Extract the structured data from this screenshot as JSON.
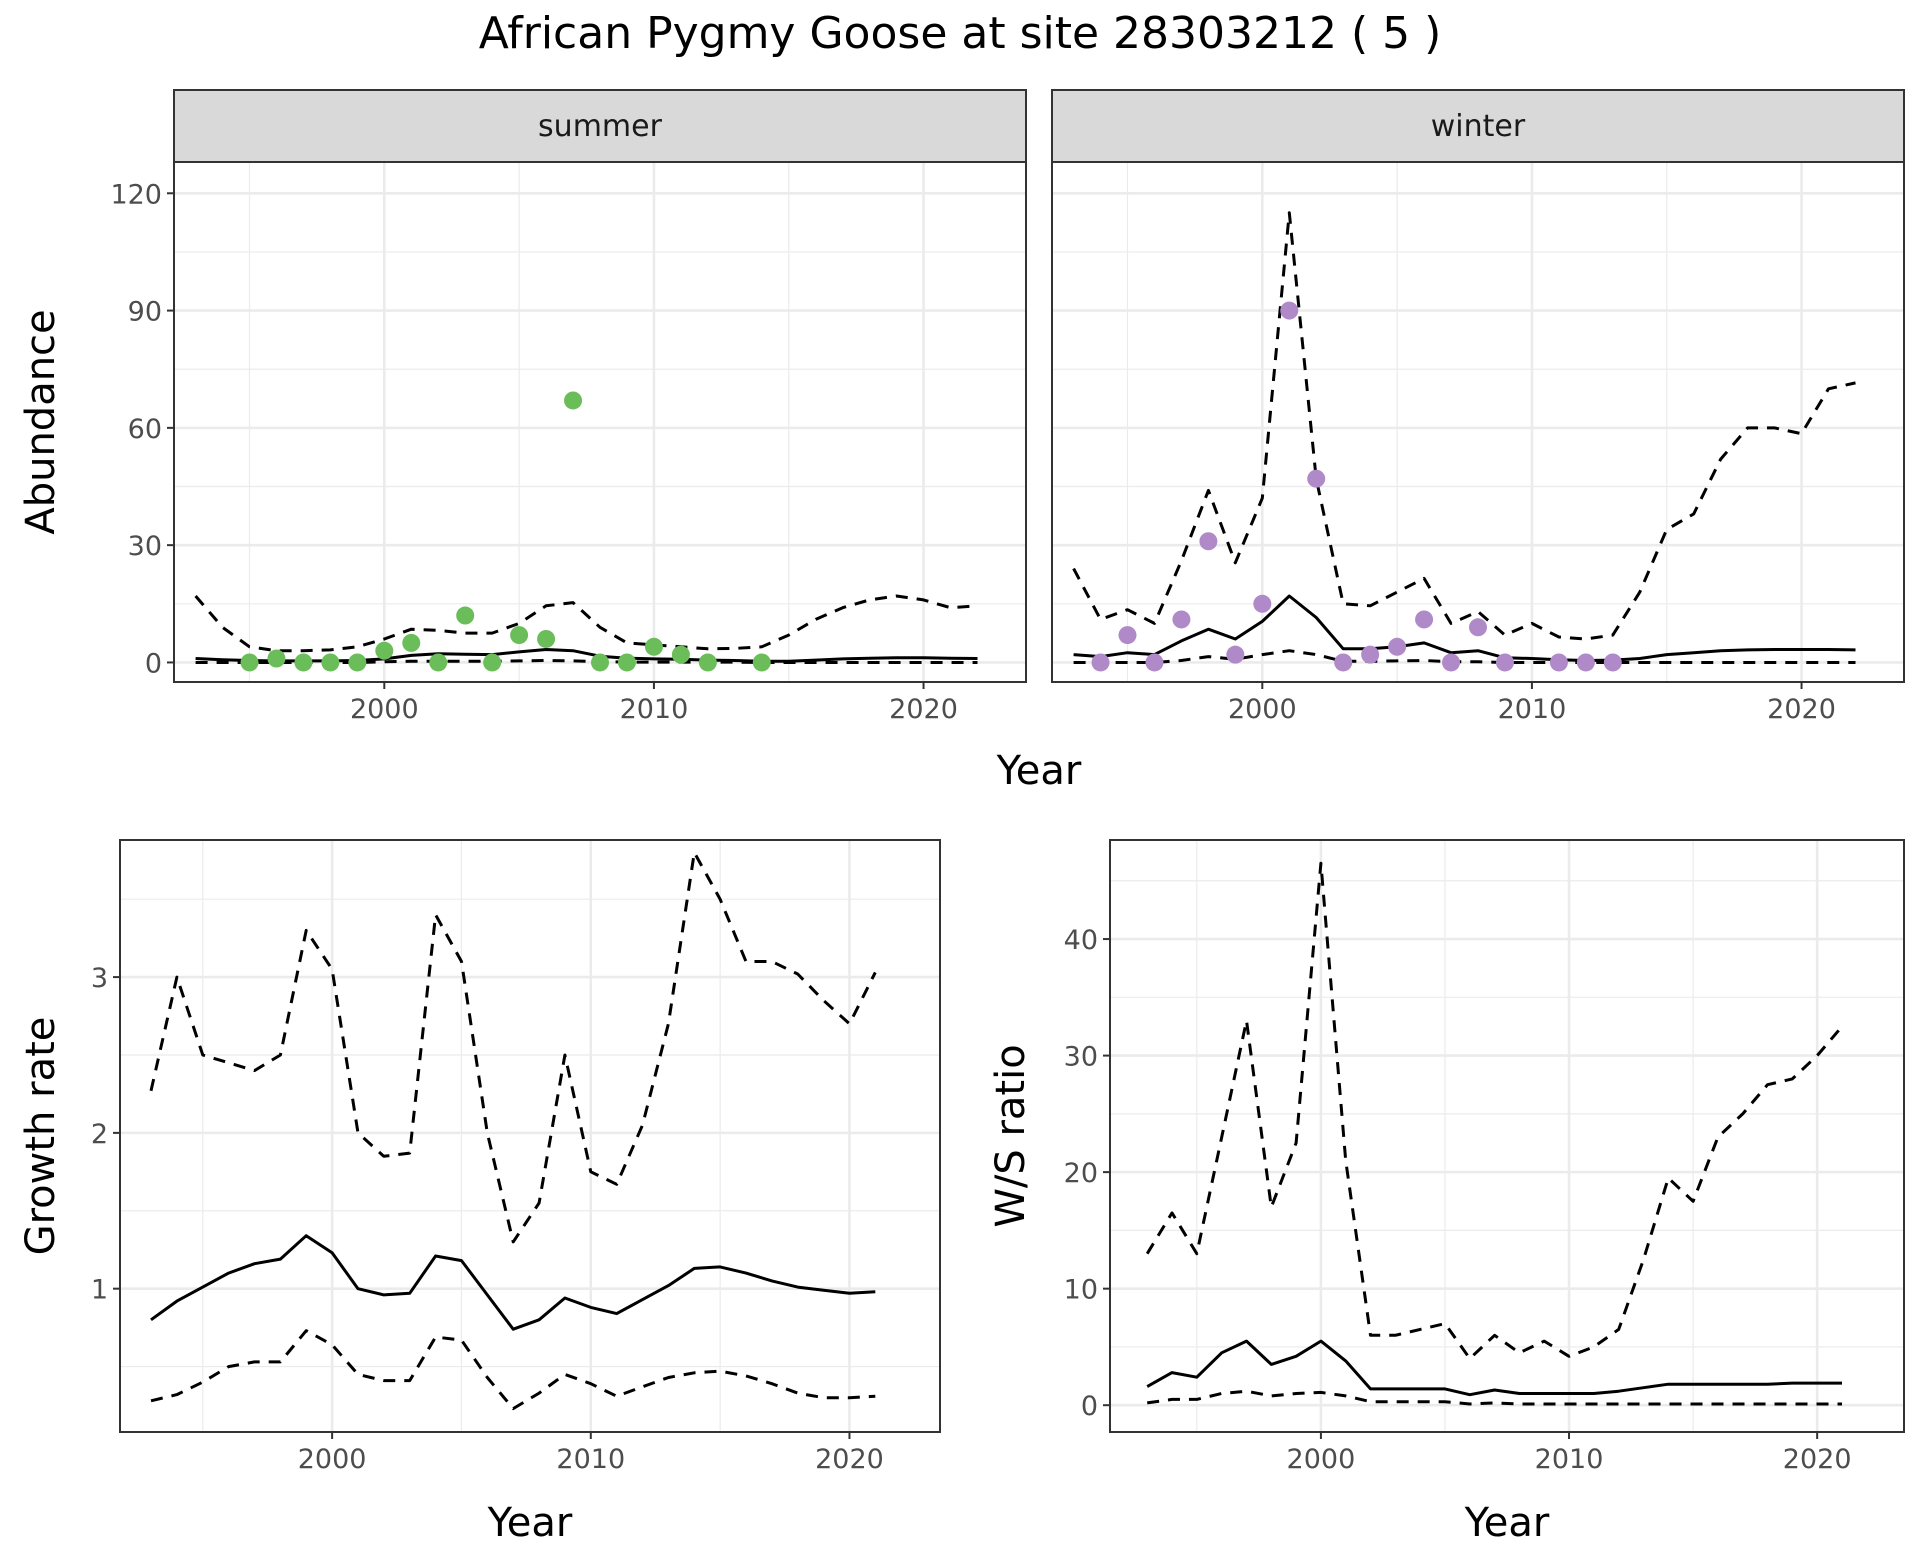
{
  "title": "African Pygmy Goose at site 28303212 ( 5 )",
  "colors": {
    "summer_points": "#6bbd5a",
    "winter_points": "#b08ac8",
    "line": "#000000",
    "grid": "#ebebeb",
    "strip": "#d9d9d9"
  },
  "chart_data": [
    {
      "type": "line",
      "panel": "summer",
      "strip_label": "summer",
      "xlabel": "Year",
      "ylabel": "Abundance",
      "xlim": [
        1992.2,
        2023.8
      ],
      "ylim": [
        -5,
        128
      ],
      "xticks": [
        2000,
        2010,
        2020
      ],
      "yticks": [
        0,
        30,
        60,
        90,
        120
      ],
      "grid": true,
      "x": [
        1993,
        1994,
        1995,
        1996,
        1997,
        1998,
        1999,
        2000,
        2001,
        2002,
        2003,
        2004,
        2005,
        2006,
        2007,
        2008,
        2009,
        2010,
        2011,
        2012,
        2013,
        2014,
        2015,
        2016,
        2017,
        2018,
        2019,
        2020,
        2021,
        2022
      ],
      "series": [
        {
          "style": "solid",
          "values": [
            1,
            0.7,
            0.5,
            0.4,
            0.4,
            0.4,
            0.5,
            0.9,
            1.8,
            2.2,
            2.1,
            2.0,
            2.7,
            3.3,
            3.0,
            1.6,
            1.1,
            0.9,
            0.8,
            0.6,
            0.5,
            0.3,
            0.3,
            0.6,
            0.9,
            1.1,
            1.2,
            1.2,
            1.1,
            1.0
          ]
        },
        {
          "style": "dashed",
          "values": [
            17,
            9,
            4,
            3,
            3,
            3.2,
            4,
            6,
            8.5,
            8.2,
            7.5,
            7.5,
            10,
            14.5,
            15.3,
            9,
            5,
            4.5,
            4,
            3.5,
            3.6,
            4,
            7,
            11,
            14,
            16,
            17,
            16,
            14,
            14.5
          ]
        },
        {
          "style": "dashed",
          "values": [
            0,
            0,
            0,
            0,
            0,
            0,
            0,
            0.2,
            0.3,
            0.3,
            0.3,
            0.3,
            0.4,
            0.5,
            0.4,
            0.2,
            0.1,
            0.1,
            0.1,
            0.1,
            0.1,
            0,
            0,
            0,
            0,
            0,
            0,
            0,
            0,
            0
          ]
        }
      ],
      "points": {
        "x": [
          1995,
          1996,
          1997,
          1998,
          1999,
          2000,
          2001,
          2002,
          2003,
          2004,
          2005,
          2006,
          2007,
          2008,
          2009,
          2010,
          2011,
          2012,
          2014
        ],
        "y": [
          0,
          1,
          0,
          0,
          0,
          3,
          5,
          0,
          12,
          0,
          7,
          6,
          67,
          0,
          0,
          4,
          2,
          0,
          0
        ]
      }
    },
    {
      "type": "line",
      "panel": "winter",
      "strip_label": "winter",
      "xlabel": "Year",
      "ylabel": "Abundance",
      "xlim": [
        1992.2,
        2023.8
      ],
      "ylim": [
        -5,
        128
      ],
      "xticks": [
        2000,
        2010,
        2020
      ],
      "yticks": [
        0,
        30,
        60,
        90,
        120
      ],
      "grid": true,
      "x": [
        1993,
        1994,
        1995,
        1996,
        1997,
        1998,
        1999,
        2000,
        2001,
        2002,
        2003,
        2004,
        2005,
        2006,
        2007,
        2008,
        2009,
        2010,
        2011,
        2012,
        2013,
        2014,
        2015,
        2016,
        2017,
        2018,
        2019,
        2020,
        2021,
        2022
      ],
      "series": [
        {
          "style": "solid",
          "values": [
            2,
            1.5,
            2.5,
            2,
            5.5,
            8.5,
            6,
            10.5,
            17,
            11.5,
            3.5,
            3.5,
            4,
            5,
            2.5,
            3,
            1.2,
            1,
            0.7,
            0.5,
            0.6,
            1,
            2,
            2.5,
            3,
            3.2,
            3.3,
            3.3,
            3.3,
            3.2
          ]
        },
        {
          "style": "dashed",
          "values": [
            24,
            11,
            13.5,
            10,
            26,
            44,
            25.5,
            42,
            115,
            47,
            15,
            14.5,
            18,
            21.5,
            10,
            13,
            7,
            10,
            6.5,
            6,
            7,
            18,
            34,
            38,
            52,
            60,
            60,
            58.5,
            70,
            71.5
          ]
        },
        {
          "style": "dashed",
          "values": [
            0,
            0,
            0,
            0,
            0.5,
            1.5,
            0.8,
            2,
            3,
            2,
            0.3,
            0.3,
            0.4,
            0.5,
            0.2,
            0.2,
            0,
            0,
            0,
            0,
            0,
            0,
            0,
            0,
            0,
            0,
            0,
            0,
            0,
            0
          ]
        }
      ],
      "points": {
        "x": [
          1994,
          1995,
          1996,
          1997,
          1998,
          1999,
          2000,
          2001,
          2002,
          2003,
          2004,
          2005,
          2006,
          2007,
          2008,
          2009,
          2011,
          2012,
          2013
        ],
        "y": [
          0,
          7,
          0,
          11,
          31,
          2,
          15,
          90,
          47,
          0,
          2,
          4,
          11,
          0,
          9,
          0,
          0,
          0,
          0
        ]
      }
    },
    {
      "type": "line",
      "panel": "growth",
      "xlabel": "Year",
      "ylabel": "Growth rate",
      "xlim": [
        1991.8,
        2023.5
      ],
      "ylim": [
        0.08,
        3.88
      ],
      "xticks": [
        2000,
        2010,
        2020
      ],
      "yticks": [
        1,
        2,
        3
      ],
      "grid": true,
      "x": [
        1993,
        1994,
        1995,
        1996,
        1997,
        1998,
        1999,
        2000,
        2001,
        2002,
        2003,
        2004,
        2005,
        2006,
        2007,
        2008,
        2009,
        2010,
        2011,
        2012,
        2013,
        2014,
        2015,
        2016,
        2017,
        2018,
        2019,
        2020,
        2021
      ],
      "series": [
        {
          "style": "solid",
          "values": [
            0.8,
            0.92,
            1.01,
            1.1,
            1.16,
            1.19,
            1.34,
            1.23,
            1.0,
            0.96,
            0.97,
            1.21,
            1.18,
            0.96,
            0.74,
            0.8,
            0.94,
            0.88,
            0.84,
            0.93,
            1.02,
            1.13,
            1.14,
            1.1,
            1.05,
            1.01,
            0.99,
            0.97,
            0.98
          ]
        },
        {
          "style": "dashed",
          "values": [
            2.27,
            3.0,
            2.5,
            2.45,
            2.4,
            2.5,
            3.3,
            3.05,
            2.0,
            1.85,
            1.87,
            3.4,
            3.1,
            2.0,
            1.3,
            1.55,
            2.5,
            1.75,
            1.67,
            2.05,
            2.7,
            3.8,
            3.5,
            3.1,
            3.1,
            3.02,
            2.85,
            2.7,
            3.03
          ]
        },
        {
          "style": "dashed",
          "values": [
            0.28,
            0.32,
            0.4,
            0.5,
            0.53,
            0.53,
            0.73,
            0.64,
            0.45,
            0.41,
            0.41,
            0.69,
            0.67,
            0.43,
            0.23,
            0.33,
            0.45,
            0.39,
            0.31,
            0.37,
            0.43,
            0.46,
            0.47,
            0.44,
            0.39,
            0.33,
            0.3,
            0.3,
            0.31
          ]
        }
      ]
    },
    {
      "type": "line",
      "panel": "ratio",
      "xlabel": "Year",
      "ylabel": "W/S ratio",
      "xlim": [
        1991.5,
        2023.5
      ],
      "ylim": [
        -2.3,
        48.5
      ],
      "xticks": [
        2000,
        2010,
        2020
      ],
      "yticks": [
        0,
        10,
        20,
        30,
        40
      ],
      "grid": true,
      "x": [
        1993,
        1994,
        1995,
        1996,
        1997,
        1998,
        1999,
        2000,
        2001,
        2002,
        2003,
        2004,
        2005,
        2006,
        2007,
        2008,
        2009,
        2010,
        2011,
        2012,
        2013,
        2014,
        2015,
        2016,
        2017,
        2018,
        2019,
        2020,
        2021
      ],
      "series": [
        {
          "style": "solid",
          "values": [
            1.6,
            2.8,
            2.4,
            4.5,
            5.5,
            3.5,
            4.2,
            5.5,
            3.8,
            1.4,
            1.4,
            1.4,
            1.4,
            0.9,
            1.3,
            1.0,
            1.0,
            1.0,
            1.0,
            1.2,
            1.5,
            1.8,
            1.8,
            1.8,
            1.8,
            1.8,
            1.9,
            1.9,
            1.9
          ]
        },
        {
          "style": "dashed",
          "values": [
            13,
            16.5,
            13,
            23,
            33,
            17,
            22.5,
            46.5,
            21,
            6,
            6,
            6.5,
            7,
            4,
            6,
            4.5,
            5.5,
            4.2,
            5,
            6.5,
            12.5,
            19.5,
            17.5,
            23,
            25,
            27.5,
            28,
            30,
            32.5
          ]
        },
        {
          "style": "dashed",
          "values": [
            0.2,
            0.5,
            0.5,
            1.0,
            1.2,
            0.8,
            1.0,
            1.1,
            0.8,
            0.3,
            0.3,
            0.3,
            0.3,
            0.1,
            0.2,
            0.1,
            0.1,
            0.1,
            0.1,
            0.1,
            0.1,
            0.1,
            0.1,
            0.1,
            0.1,
            0.1,
            0.1,
            0.1,
            0.1
          ]
        }
      ]
    }
  ]
}
